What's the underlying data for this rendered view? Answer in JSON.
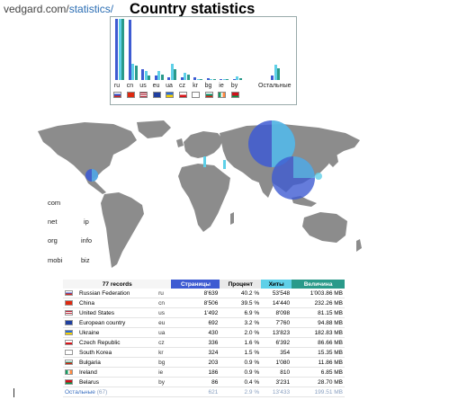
{
  "header": {
    "site": "vedgard.com/",
    "path": "statistics/",
    "title": "Country statistics"
  },
  "colors": {
    "pages": "#3e5bd2",
    "hits": "#5fd0e8",
    "size": "#2a9a8a",
    "map_land": "#8c8c8c"
  },
  "bar_chart": {
    "countries": [
      "ru",
      "cn",
      "us",
      "eu",
      "ua",
      "cz",
      "kr",
      "bg",
      "ie",
      "by"
    ],
    "other_label": "Остальные",
    "flags": [
      "flag-ru",
      "flag-cn",
      "flag-us",
      "flag-eu",
      "flag-ua",
      "flag-cz",
      "flag-kr",
      "flag-bg",
      "flag-ie",
      "flag-by"
    ]
  },
  "chart_data": {
    "type": "bar",
    "categories": [
      "ru",
      "cn",
      "us",
      "eu",
      "ua",
      "cz",
      "kr",
      "bg",
      "ie",
      "by",
      "Остальные"
    ],
    "series": [
      {
        "name": "Страницы",
        "values": [
          8639,
          8506,
          1492,
          692,
          430,
          336,
          324,
          203,
          186,
          86,
          621
        ]
      },
      {
        "name": "Хиты",
        "values": [
          53548,
          14440,
          8098,
          7760,
          13823,
          6392,
          354,
          1080,
          810,
          3231,
          13433
        ]
      },
      {
        "name": "Величина",
        "values": [
          1003.86,
          232.26,
          81.15,
          94.88,
          182.83,
          86.66,
          15.35,
          11.86,
          6.85,
          28.7,
          199.51
        ]
      }
    ]
  },
  "domains": [
    {
      "label": "com"
    },
    {
      "label": "net"
    },
    {
      "label": "ip"
    },
    {
      "label": "org"
    },
    {
      "label": "info"
    },
    {
      "label": "mobi"
    },
    {
      "label": "biz"
    }
  ],
  "table": {
    "records_header": "77 records",
    "col_pages": "Страницы",
    "col_percent": "Процент",
    "col_hits": "Хиты",
    "col_size": "Величина",
    "rows": [
      {
        "flag": "flag-ru",
        "country": "Russian Federation",
        "code": "ru",
        "pages": "8'639",
        "percent": "40.2 %",
        "hits": "53'548",
        "size": "1'003.86 MB"
      },
      {
        "flag": "flag-cn",
        "country": "China",
        "code": "cn",
        "pages": "8'506",
        "percent": "39.5 %",
        "hits": "14'440",
        "size": "232.26 MB"
      },
      {
        "flag": "flag-us",
        "country": "United States",
        "code": "us",
        "pages": "1'492",
        "percent": "6.9 %",
        "hits": "8'098",
        "size": "81.15 MB"
      },
      {
        "flag": "flag-eu",
        "country": "European country",
        "code": "eu",
        "pages": "692",
        "percent": "3.2 %",
        "hits": "7'760",
        "size": "94.88 MB"
      },
      {
        "flag": "flag-ua",
        "country": "Ukraine",
        "code": "ua",
        "pages": "430",
        "percent": "2.0 %",
        "hits": "13'823",
        "size": "182.83 MB"
      },
      {
        "flag": "flag-cz",
        "country": "Czech Republic",
        "code": "cz",
        "pages": "336",
        "percent": "1.6 %",
        "hits": "6'392",
        "size": "86.66 MB"
      },
      {
        "flag": "flag-kr",
        "country": "South Korea",
        "code": "kr",
        "pages": "324",
        "percent": "1.5 %",
        "hits": "354",
        "size": "15.35 MB"
      },
      {
        "flag": "flag-bg",
        "country": "Bulgaria",
        "code": "bg",
        "pages": "203",
        "percent": "0.9 %",
        "hits": "1'080",
        "size": "11.86 MB"
      },
      {
        "flag": "flag-ie",
        "country": "Ireland",
        "code": "ie",
        "pages": "186",
        "percent": "0.9 %",
        "hits": "810",
        "size": "6.85 MB"
      },
      {
        "flag": "flag-by",
        "country": "Belarus",
        "code": "by",
        "pages": "86",
        "percent": "0.4 %",
        "hits": "3'231",
        "size": "28.70 MB"
      }
    ],
    "other": {
      "label": "Остальные",
      "count": "(67)",
      "pages": "621",
      "percent": "2.9 %",
      "hits": "13'433",
      "size": "199.51 MB"
    }
  }
}
